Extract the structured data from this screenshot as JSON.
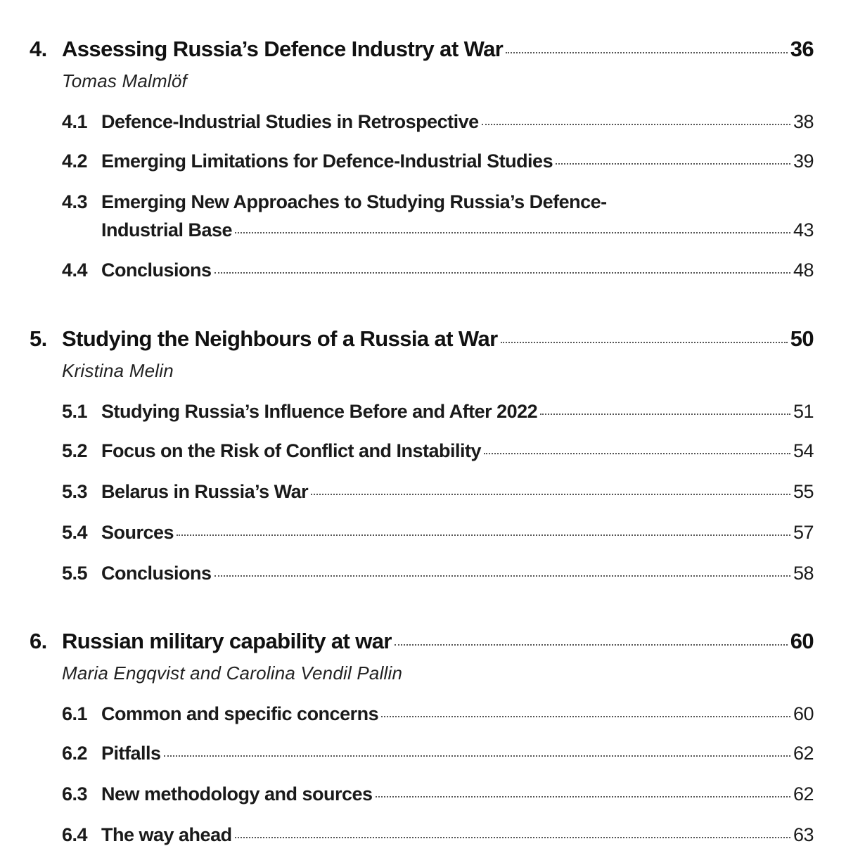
{
  "chapters": [
    {
      "num": "4.",
      "title": "Assessing Russia’s Defence Industry at War",
      "page": "36",
      "author": "Tomas Malmlöf",
      "sections": [
        {
          "num": "4.1",
          "title": "Defence-Industrial Studies in Retrospective",
          "page": "38"
        },
        {
          "num": "4.2",
          "title": "Emerging Limitations for Defence-Industrial Studies",
          "page": "39"
        },
        {
          "num": "4.3",
          "title_line1": "Emerging New Approaches to Studying Russia’s Defence-",
          "title": "Industrial Base",
          "page": "43"
        },
        {
          "num": "4.4",
          "title": "Conclusions",
          "page": "48"
        }
      ]
    },
    {
      "num": "5.",
      "title": "Studying the Neighbours of a Russia at War",
      "page": "50",
      "author": "Kristina Melin",
      "sections": [
        {
          "num": "5.1",
          "title": "Studying Russia’s Influence Before and After 2022",
          "page": "51"
        },
        {
          "num": "5.2",
          "title": "Focus on the Risk of Conflict and Instability",
          "page": "54"
        },
        {
          "num": "5.3",
          "title": "Belarus in Russia’s War",
          "page": "55"
        },
        {
          "num": "5.4",
          "title": "Sources",
          "page": "57"
        },
        {
          "num": "5.5",
          "title": "Conclusions",
          "page": "58"
        }
      ]
    },
    {
      "num": "6.",
      "title": "Russian military capability at war",
      "page": "60",
      "author": "Maria Engqvist and Carolina Vendil Pallin",
      "sections": [
        {
          "num": "6.1",
          "title": "Common and specific concerns",
          "page": "60"
        },
        {
          "num": "6.2",
          "title": "Pitfalls",
          "page": "62"
        },
        {
          "num": "6.3",
          "title": "New methodology and sources",
          "page": "62"
        },
        {
          "num": "6.4",
          "title": "The way ahead",
          "page": "63"
        }
      ]
    }
  ]
}
